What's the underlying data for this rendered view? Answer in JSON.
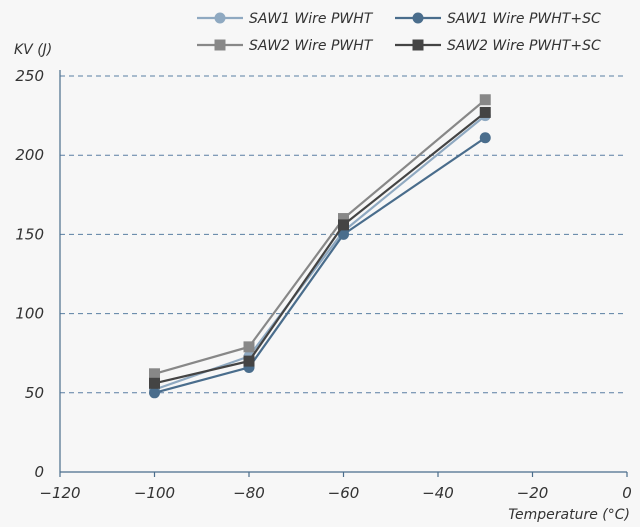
{
  "chart_data": {
    "type": "line",
    "xlabel": "Temperature (°C)",
    "ylabel": "KV (J)",
    "xlim": [
      -120,
      0
    ],
    "ylim": [
      0,
      250
    ],
    "xticks": [
      -120,
      -100,
      -80,
      -60,
      -40,
      -20,
      0
    ],
    "yticks": [
      0,
      50,
      100,
      150,
      200,
      250
    ],
    "grid": "horizontal dashed",
    "legend_position": "top",
    "series": [
      {
        "name": "SAW1 Wire PWHT",
        "color": "#8fa9c1",
        "marker": "circle",
        "x": [
          -100,
          -80,
          -60,
          -30
        ],
        "y": [
          52,
          73,
          152,
          225
        ]
      },
      {
        "name": "SAW1 Wire PWHT+SC",
        "color": "#4a6d8c",
        "marker": "circle",
        "x": [
          -100,
          -80,
          -60,
          -30
        ],
        "y": [
          50,
          66,
          150,
          211
        ]
      },
      {
        "name": "SAW2 Wire PWHT",
        "color": "#888888",
        "marker": "square",
        "x": [
          -100,
          -80,
          -60,
          -30
        ],
        "y": [
          62,
          79,
          160,
          235
        ]
      },
      {
        "name": "SAW2 Wire PWHT+SC",
        "color": "#444444",
        "marker": "square",
        "x": [
          -100,
          -80,
          -60,
          -30
        ],
        "y": [
          56,
          70,
          156,
          227
        ]
      }
    ]
  }
}
